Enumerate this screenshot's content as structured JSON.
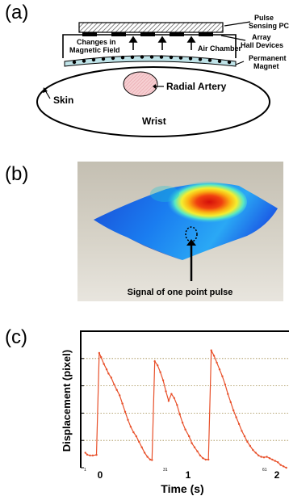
{
  "panel_a": {
    "label": "(a)",
    "labels": {
      "pulse_pcb_line1": "Pulse",
      "pulse_pcb_line2": "Sensing PCB",
      "array_line1": "Array",
      "array_line2": "Hall Devices",
      "air_chamber": "Air Chamber",
      "changes_line1": "Changes in",
      "changes_line2": "Magnetic Field",
      "magnet_line1": "Permanent",
      "magnet_line2": "Magnet",
      "skin": "Skin",
      "radial_artery": "Radial Artery",
      "wrist": "Wrist"
    }
  },
  "panel_b": {
    "label": "(b)",
    "caption": "Signal of one point pulse"
  },
  "panel_c": {
    "label": "(c)",
    "ylabel": "Displacement (pixel)",
    "xlabel": "Time (s)",
    "tick_labels": [
      "0",
      "1",
      "2"
    ],
    "minor_tick_labels": [
      "1",
      "31",
      "61"
    ],
    "colors": {
      "line": "#e8502a",
      "grid": "#a08a4a",
      "frame": "#000000"
    }
  },
  "chart_data": {
    "type": "line",
    "xlabel": "Time (s)",
    "ylabel": "Displacement (pixel)",
    "xlim": [
      -0.2,
      2.05
    ],
    "ylim": [
      0,
      5
    ],
    "x_ticks": [
      0,
      1,
      2
    ],
    "grid": true,
    "series": [
      {
        "x": [
          -0.15,
          -0.13,
          -0.1,
          -0.07,
          -0.03,
          0,
          0.02,
          0.05,
          0.08,
          0.1,
          0.13,
          0.16,
          0.19,
          0.22,
          0.25,
          0.28,
          0.31,
          0.34,
          0.37,
          0.4,
          0.43,
          0.46,
          0.49,
          0.52,
          0.55,
          0.57,
          0.6,
          0.63,
          0.66,
          0.69,
          0.72,
          0.75,
          0.78,
          0.81,
          0.84,
          0.87,
          0.9,
          0.93,
          0.97,
          1.0,
          1.03,
          1.06,
          1.09,
          1.12,
          1.15,
          1.18,
          1.21,
          1.24,
          1.27,
          1.3,
          1.33,
          1.36,
          1.39,
          1.42,
          1.45,
          1.48,
          1.51,
          1.54,
          1.57,
          1.6,
          1.63,
          1.66,
          1.69,
          1.72,
          1.75,
          1.78,
          1.81,
          1.84,
          1.87,
          1.9,
          1.93,
          1.96,
          1.99,
          2.02
        ],
        "y": [
          0.55,
          0.48,
          0.45,
          0.45,
          0.47,
          4.2,
          4.05,
          3.8,
          3.6,
          3.45,
          3.3,
          3.05,
          2.85,
          2.65,
          2.35,
          2.05,
          1.75,
          1.5,
          1.3,
          1.15,
          0.95,
          0.75,
          0.55,
          0.4,
          0.3,
          0.28,
          3.9,
          3.75,
          3.5,
          3.2,
          2.8,
          2.45,
          2.7,
          2.55,
          2.3,
          1.95,
          1.65,
          1.4,
          1.15,
          0.9,
          0.75,
          0.6,
          0.45,
          0.35,
          0.3,
          0.3,
          4.3,
          4.1,
          3.85,
          3.6,
          3.35,
          3.05,
          2.7,
          2.4,
          2.1,
          1.85,
          1.6,
          1.35,
          1.15,
          0.95,
          0.8,
          0.65,
          0.55,
          0.45,
          0.4,
          0.38,
          0.4,
          0.35,
          0.3,
          0.25,
          0.2,
          0.1,
          0.05,
          0.0
        ]
      }
    ]
  }
}
